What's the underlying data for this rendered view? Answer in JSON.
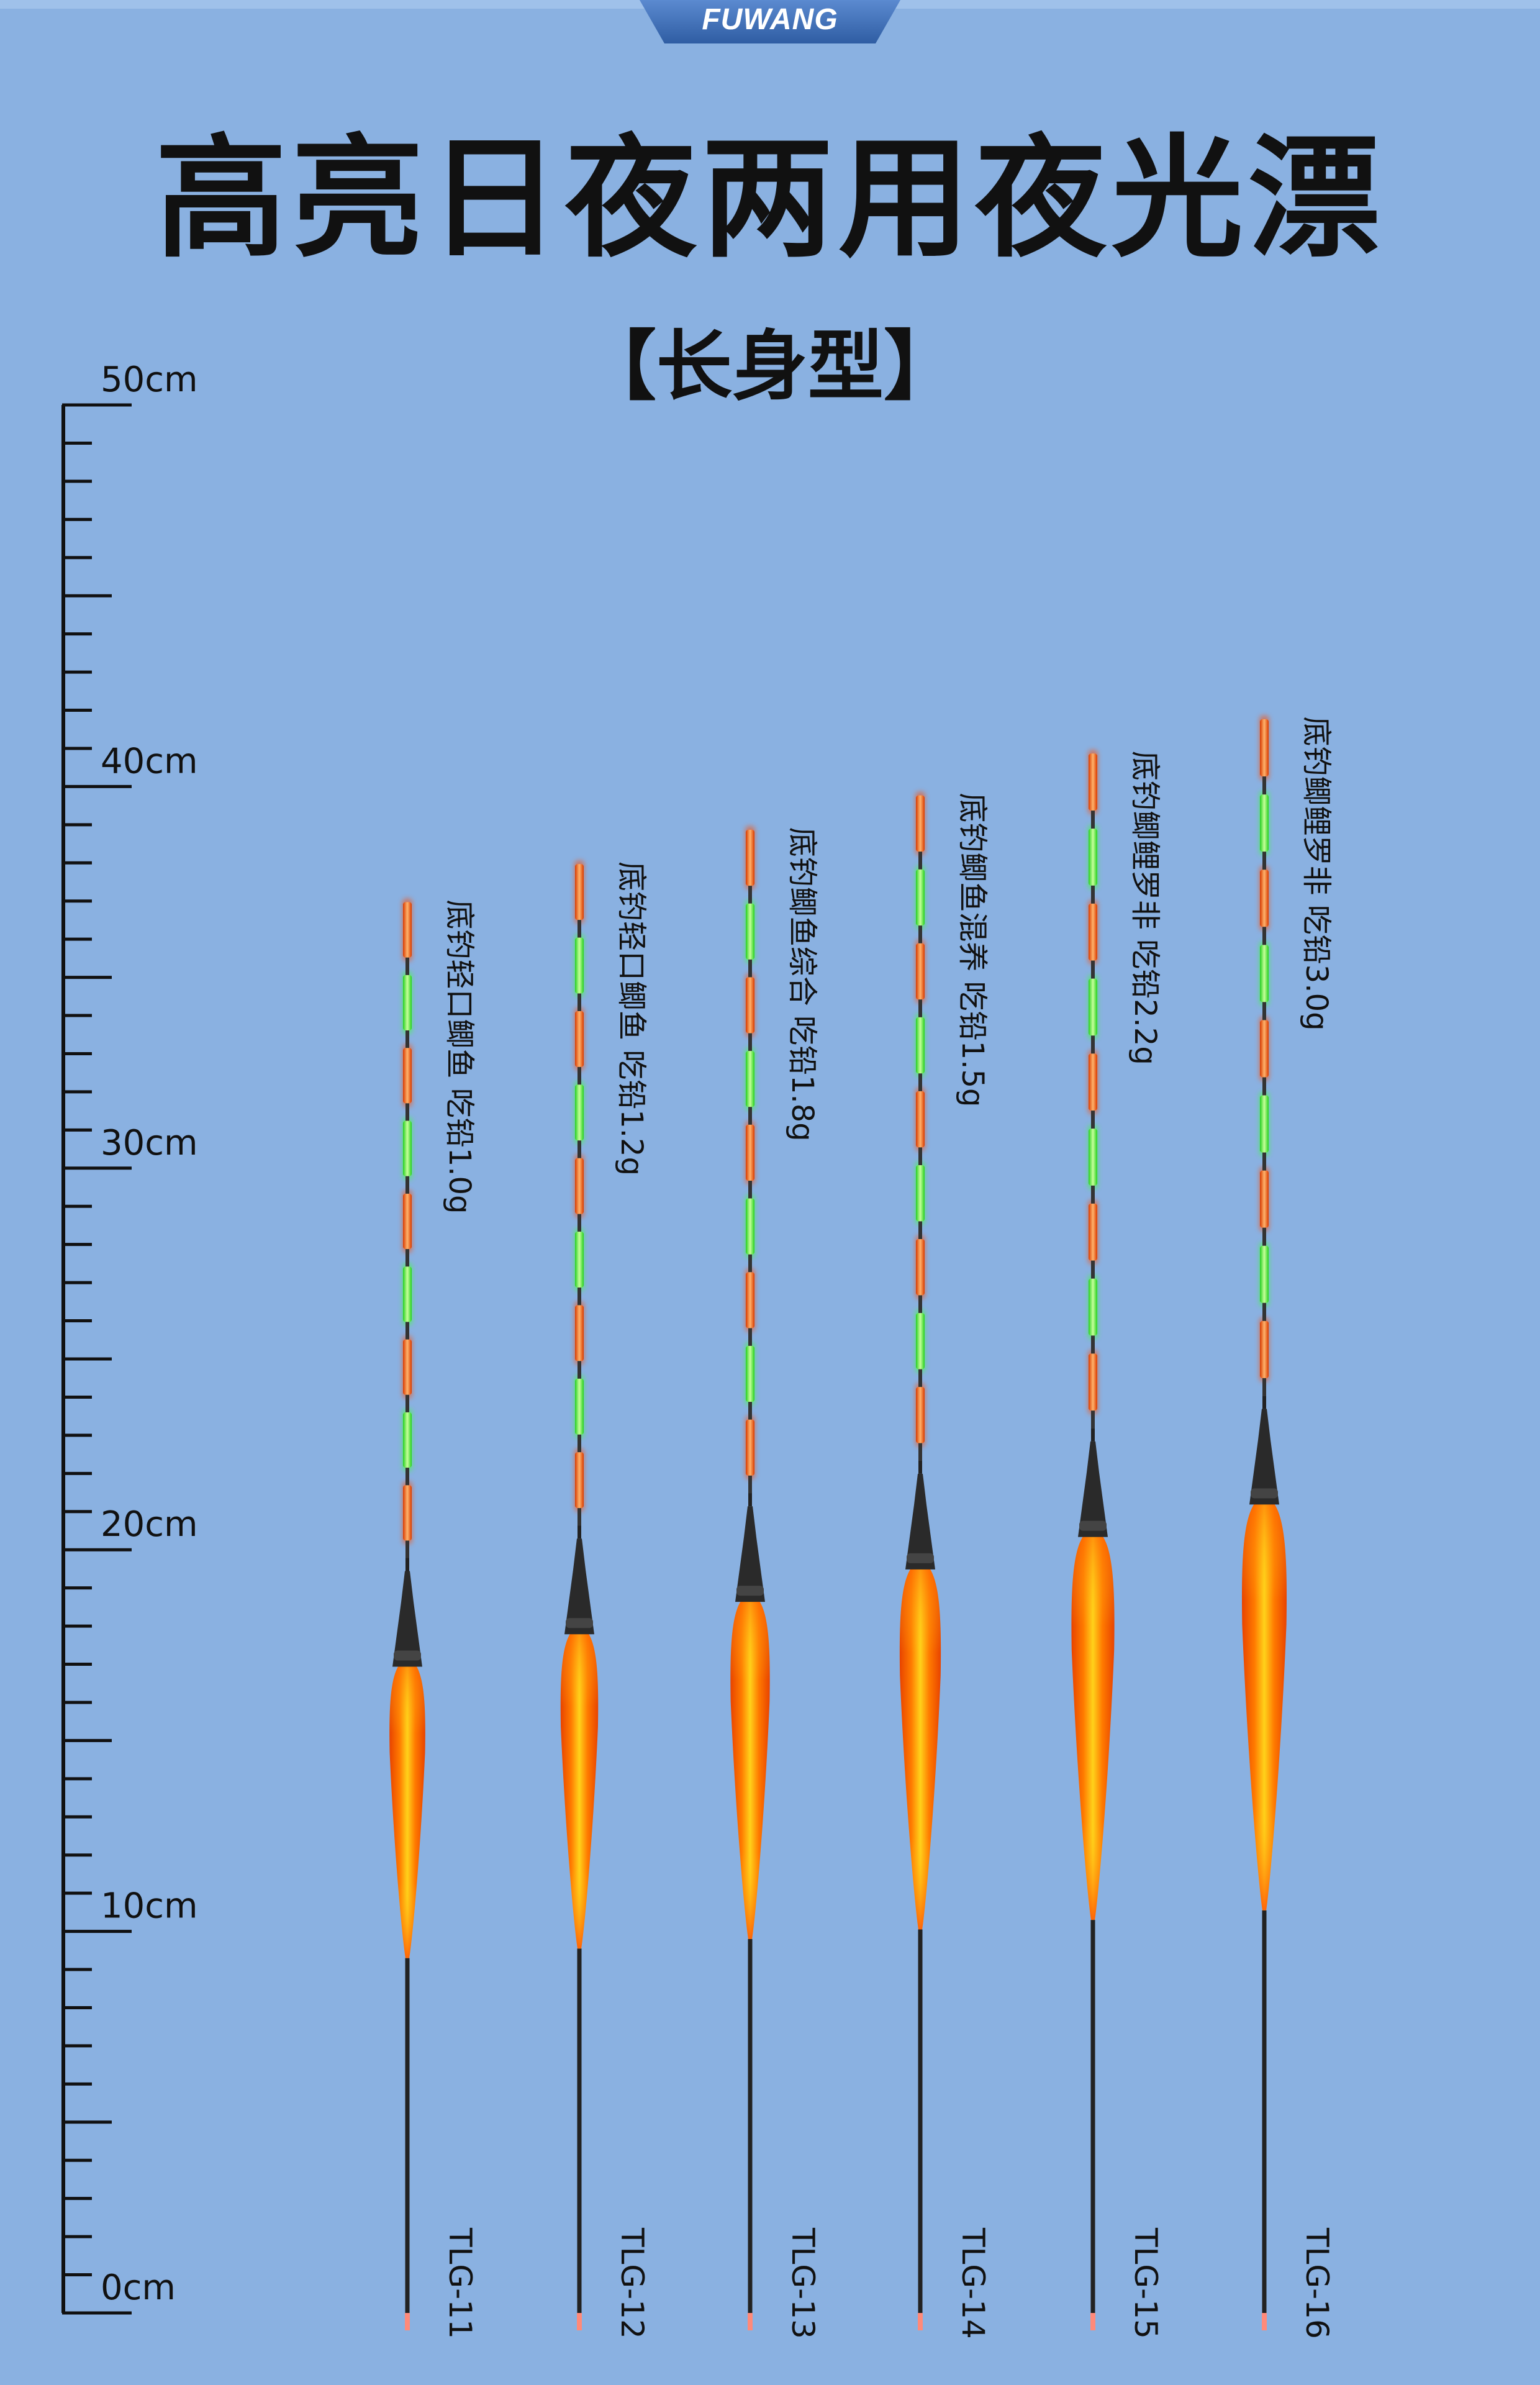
{
  "brand": "FUWANG",
  "title": "高亮日夜两用夜光漂",
  "subtitle": "【长身型】",
  "ruler": {
    "unit": "cm",
    "labels": [
      "50cm",
      "40cm",
      "30cm",
      "20cm",
      "10cm",
      "0cm"
    ],
    "max_cm": 50
  },
  "floats": [
    {
      "model": "TLG-11",
      "description": "底钓轻口鲫鱼  吃铅1.0g",
      "total_length_cm": 37.2
    },
    {
      "model": "TLG-12",
      "description": "底钓轻口鲫鱼  吃铅1.2g",
      "total_length_cm": 38.2
    },
    {
      "model": "TLG-13",
      "description": "底钓鲫鱼综合 吃铅1.8g",
      "total_length_cm": 39.1
    },
    {
      "model": "TLG-14",
      "description": "底钓鲫鱼混养  吃铅1.5g",
      "total_length_cm": 40.0
    },
    {
      "model": "TLG-15",
      "description": "底钓鲫鲤罗非  吃铅2.2g",
      "total_length_cm": 41.1
    },
    {
      "model": "TLG-16",
      "description": "底钓鲫鲤罗非  吃铅3.0g",
      "total_length_cm": 42.0
    }
  ],
  "colors": {
    "background": "#8ab1e1",
    "brand_tab": "#3c6bb0",
    "segment_red": "#ff5a1a",
    "segment_green": "#3dff3a",
    "body_orange": "#ff5a00",
    "body_yellow": "#ffd21a"
  }
}
